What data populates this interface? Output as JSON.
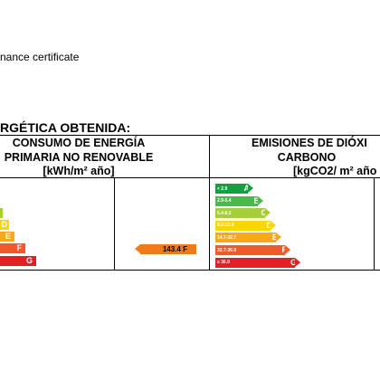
{
  "caption": "nance certificate",
  "section_title": "RGÉTICA OBTENIDA:",
  "consumo": {
    "header_lines": [
      "CONSUMO DE ENERGÍA",
      "PRIMARIA NO RENOVABLE",
      "[kWh/m² año]"
    ],
    "partial_letters": [
      "D",
      "E",
      "F",
      "G"
    ],
    "rating_value": "143.4 F"
  },
  "emisiones": {
    "header_lines": [
      "EMISIONES DE DIÓXI",
      "CARBONO",
      "[kgCO2/ m² año"
    ],
    "scale": [
      {
        "range": "< 2.9",
        "letter": "A",
        "color": "#12a140"
      },
      {
        "range": "2.9-5.4",
        "letter": "B",
        "color": "#4cb848"
      },
      {
        "range": "5.4-8.2",
        "letter": "C",
        "color": "#a6ce39"
      },
      {
        "range": "8.2-12.4",
        "letter": "D",
        "color": "#ffd500"
      },
      {
        "range": "14.7-32.7",
        "letter": "E",
        "color": "#f7a81b"
      },
      {
        "range": "32.7-36.9",
        "letter": "F",
        "color": "#f05a28"
      },
      {
        "range": "≥ 36.9",
        "letter": "G",
        "color": "#e31e24"
      }
    ]
  }
}
